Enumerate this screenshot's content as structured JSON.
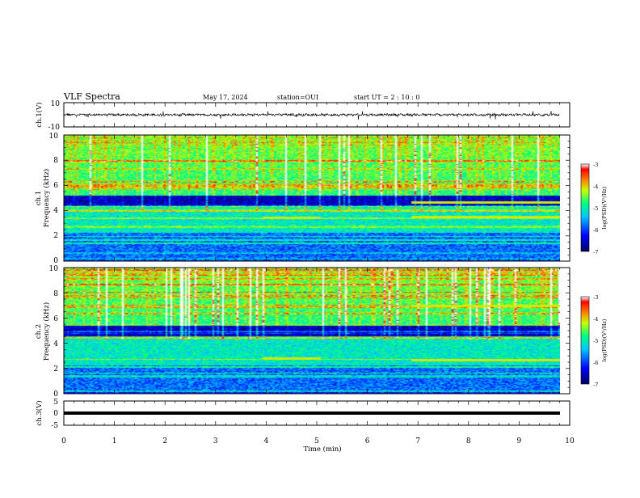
{
  "header": {
    "title": "VLF Spectra",
    "date": "May 17, 2024",
    "station": "station=OUI",
    "start": "start  UT  =   2  : 10 : 0"
  },
  "chart_data": {
    "type": "heatmap",
    "x_label": "Time  (min)",
    "x_ticks": [
      "0",
      "1",
      "2",
      "3",
      "4",
      "5",
      "6",
      "7",
      "8",
      "9",
      "10"
    ],
    "xlim": [
      0,
      10
    ],
    "colorscale": [
      "#000060",
      "#0000ff",
      "#00c8ff",
      "#00ff80",
      "#c8ff00",
      "#ff8000",
      "#ff0000",
      "#ffffff"
    ],
    "panels": [
      {
        "kind": "waveform",
        "ylabel": "ch.1(V)",
        "yticks": [
          "10",
          "-10"
        ],
        "ylim": [
          -10,
          10
        ],
        "mean_level": 0
      },
      {
        "kind": "spectrogram",
        "ylabel_line1": "ch.1",
        "ylabel_line2": "Frequency  (kHz)",
        "yticks": [
          "0",
          "2",
          "4",
          "6",
          "8",
          "10"
        ],
        "ylim": [
          0,
          10
        ],
        "colorbar_label": "log(PSD)(V²/Hz)",
        "colorbar_ticks": [
          "-3",
          "-4",
          "-5",
          "-6",
          "-7"
        ],
        "colorbar_range": [
          -7,
          -3
        ],
        "dark_band_khz": [
          4.4,
          5.2
        ],
        "tone_segments": [
          {
            "t0": 3.9,
            "t1": 5.05,
            "f": 3.45
          },
          {
            "t0": 6.85,
            "t1": 9.8,
            "f": 3.5
          },
          {
            "t0": 6.85,
            "t1": 9.8,
            "f": 4.7
          }
        ]
      },
      {
        "kind": "spectrogram",
        "ylabel_line1": "ch.2",
        "ylabel_line2": "Frequency  (kHz)",
        "yticks": [
          "0",
          "2",
          "4",
          "6",
          "8",
          "10"
        ],
        "ylim": [
          0,
          10
        ],
        "colorbar_label": "log(PSD)(V²/Hz)",
        "colorbar_ticks": [
          "-3",
          "-4",
          "-5",
          "-6",
          "-7"
        ],
        "colorbar_range": [
          -7,
          -3
        ],
        "dark_band_khz": [
          4.6,
          5.4
        ],
        "tone_segments": [
          {
            "t0": 3.9,
            "t1": 5.05,
            "f": 2.8
          },
          {
            "t0": 6.85,
            "t1": 9.8,
            "f": 2.7
          },
          {
            "t0": 6.85,
            "t1": 9.8,
            "f": 7.0
          }
        ]
      },
      {
        "kind": "waveform",
        "ylabel": "ch.3(V)",
        "yticks": [
          "5",
          "0",
          "-5"
        ],
        "ylim": [
          -5,
          5
        ],
        "mean_level": 0
      }
    ]
  }
}
